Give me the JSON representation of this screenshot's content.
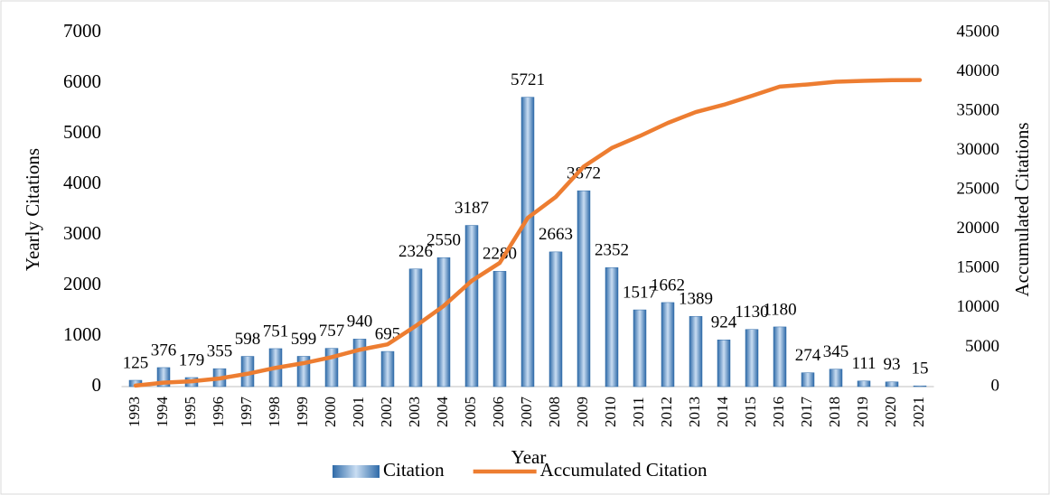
{
  "chart_data": {
    "type": "bar-line",
    "xlabel": "Year",
    "ylabel": "Yearly Citations",
    "y2label": "Accumulated Citations",
    "categories": [
      "1993",
      "1994",
      "1995",
      "1996",
      "1997",
      "1998",
      "1999",
      "2000",
      "2001",
      "2002",
      "2003",
      "2004",
      "2005",
      "2006",
      "2007",
      "2008",
      "2009",
      "2010",
      "2011",
      "2012",
      "2013",
      "2014",
      "2015",
      "2016",
      "2017",
      "2018",
      "2019",
      "2020",
      "2021"
    ],
    "series": [
      {
        "name": "Citation",
        "type": "bar",
        "color": "#2e6aa8",
        "values": [
          125,
          376,
          179,
          355,
          598,
          751,
          599,
          757,
          940,
          695,
          2326,
          2550,
          3187,
          2280,
          5721,
          2663,
          3872,
          2352,
          1517,
          1662,
          1389,
          924,
          1130,
          1180,
          274,
          345,
          111,
          93,
          15
        ]
      },
      {
        "name": "Accumulated Citation",
        "type": "line",
        "axis": "y2",
        "color": "#ed7d31",
        "values": [
          125,
          501,
          680,
          1035,
          1633,
          2384,
          2983,
          3740,
          4680,
          5375,
          7701,
          10251,
          13438,
          15718,
          21439,
          24102,
          27974,
          30326,
          31843,
          33505,
          34894,
          35818,
          36948,
          38128,
          38402,
          38747,
          38858,
          38951,
          38966
        ]
      }
    ],
    "ylim": [
      0,
      7000
    ],
    "yticks": [
      0,
      1000,
      2000,
      3000,
      4000,
      5000,
      6000,
      7000
    ],
    "y2lim": [
      0,
      45000
    ],
    "y2ticks": [
      0,
      5000,
      10000,
      15000,
      20000,
      25000,
      30000,
      35000,
      40000,
      45000
    ],
    "legend": "bottom",
    "grid": false
  }
}
